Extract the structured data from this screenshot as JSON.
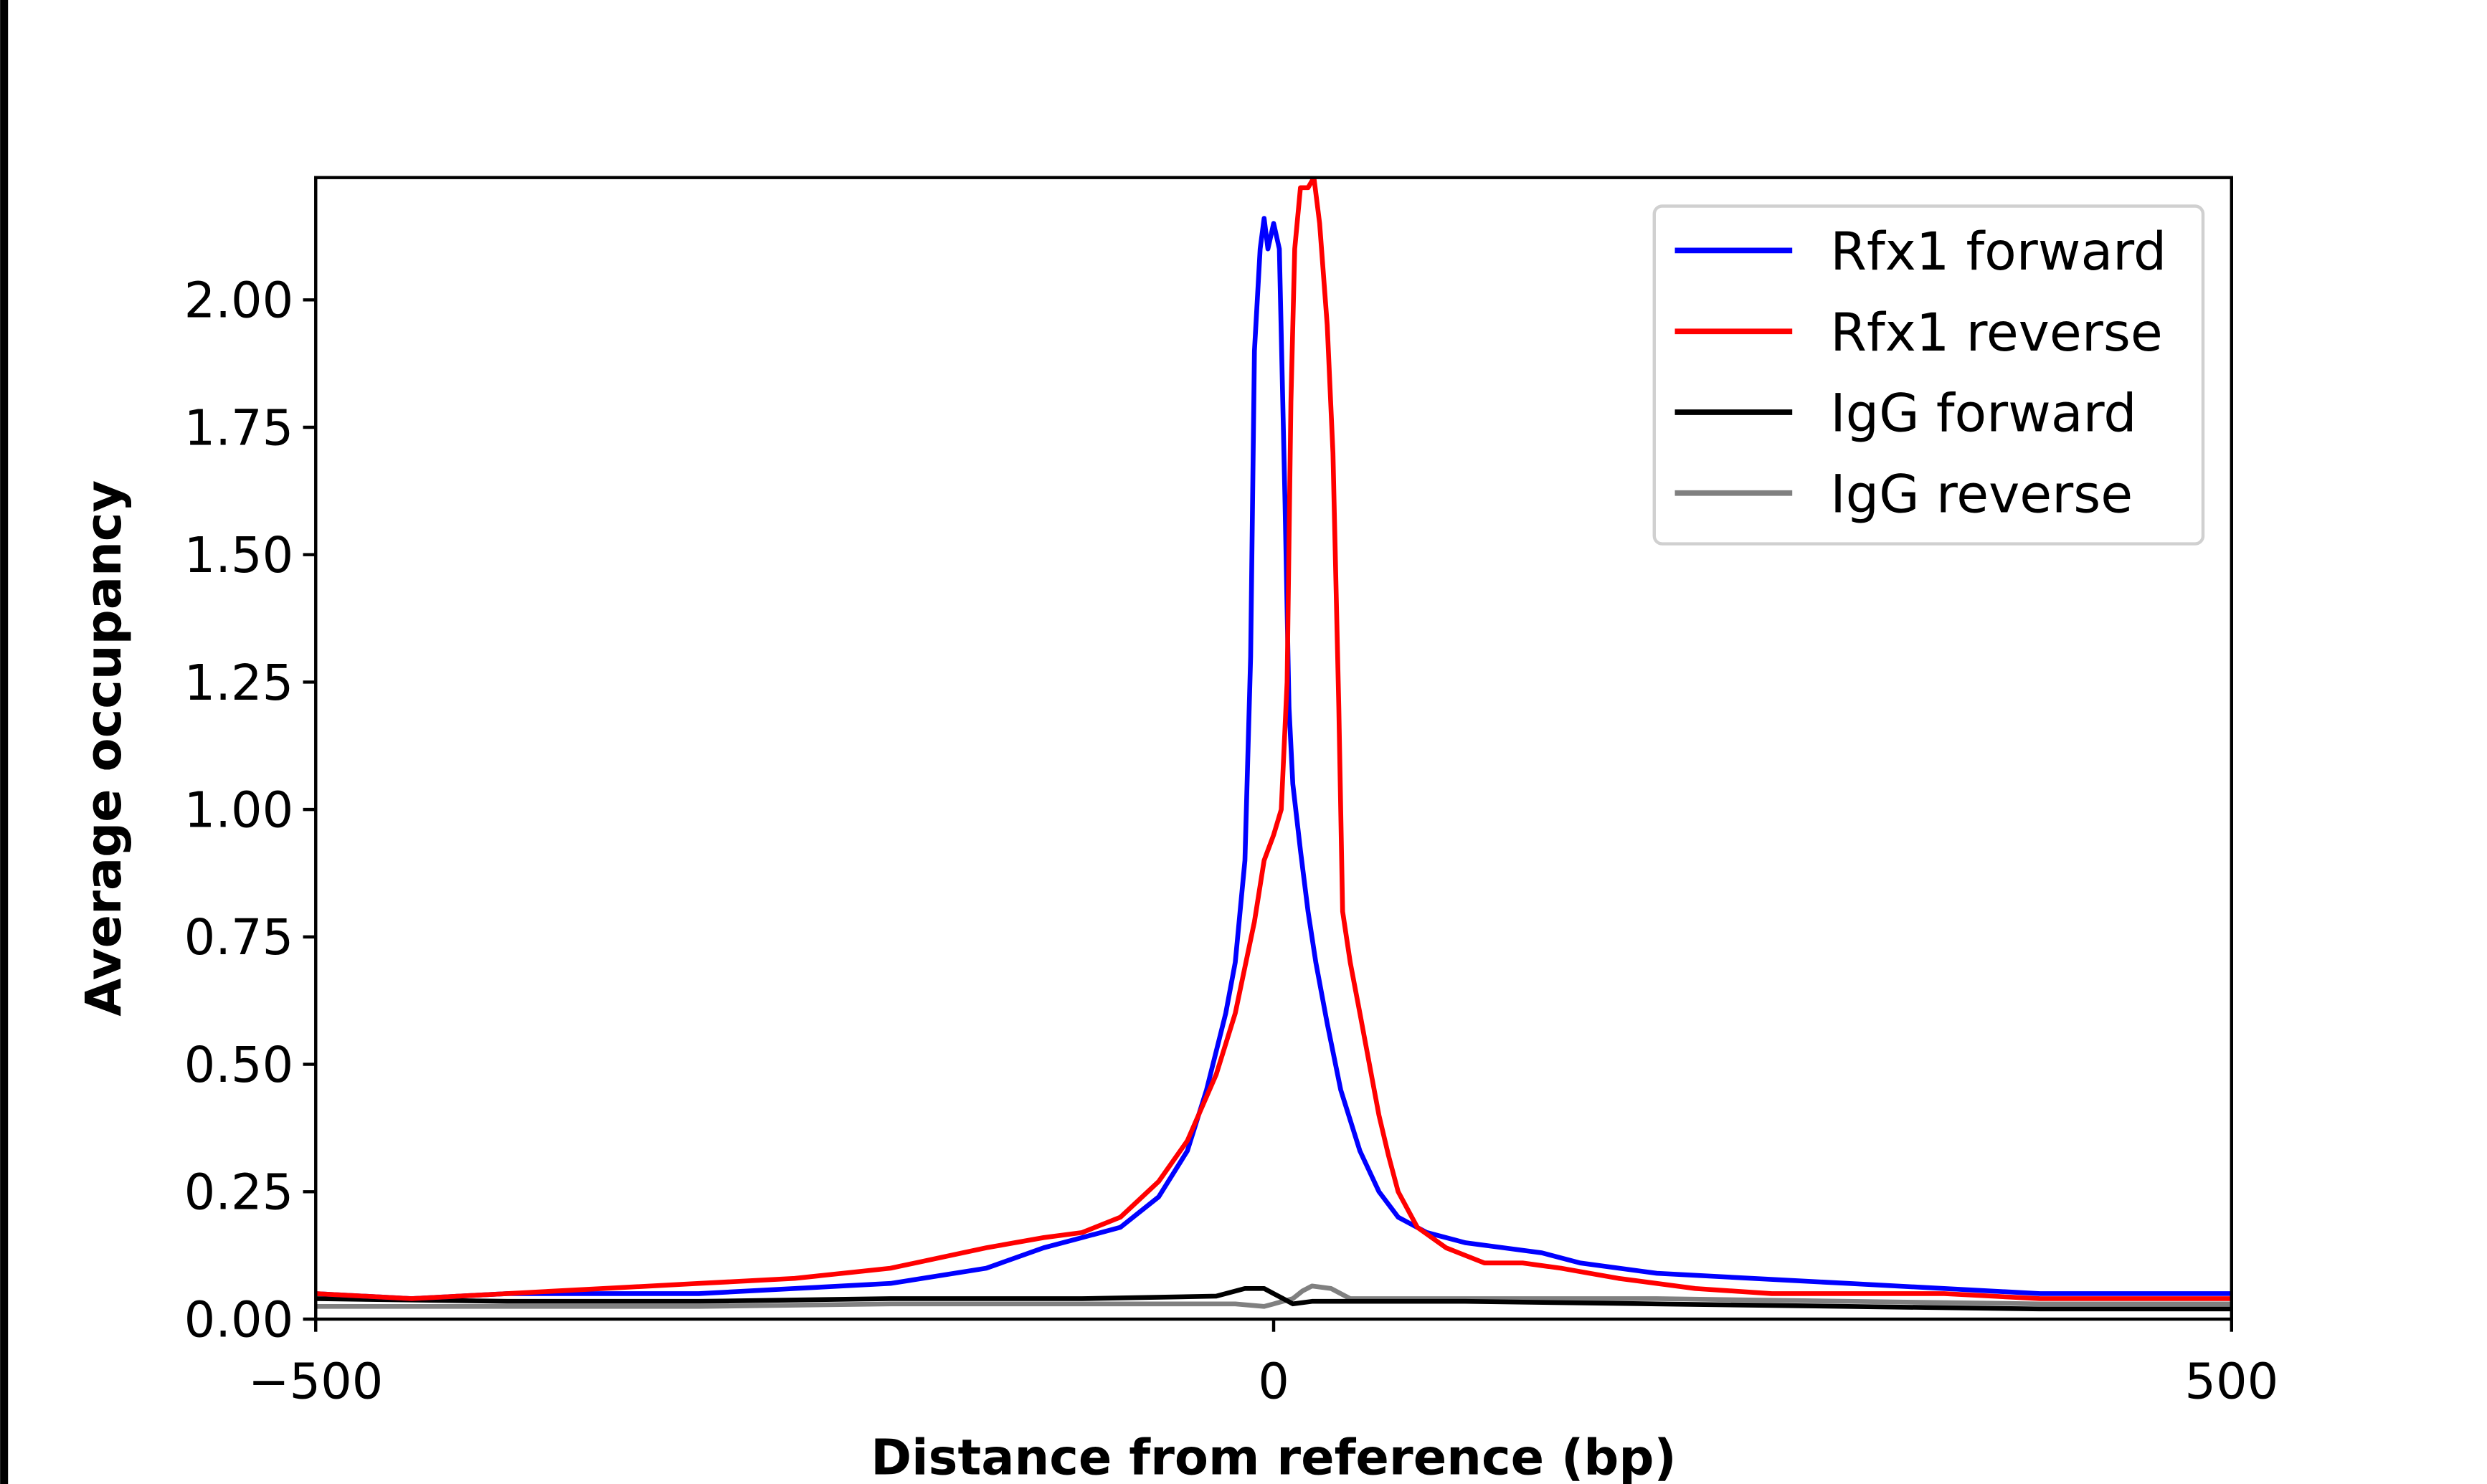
{
  "chart_data": {
    "type": "line",
    "xlabel": "Distance from reference (bp)",
    "ylabel": "Average occupancy",
    "xlim": [
      -500,
      500
    ],
    "ylim": [
      0,
      2.24
    ],
    "xticks": [
      "−500",
      "0",
      "500"
    ],
    "xtick_values": [
      -500,
      0,
      500
    ],
    "yticks": [
      "0.00",
      "0.25",
      "0.50",
      "0.75",
      "1.00",
      "1.25",
      "1.50",
      "1.75",
      "2.00"
    ],
    "ytick_values": [
      0,
      0.25,
      0.5,
      0.75,
      1.0,
      1.25,
      1.5,
      1.75,
      2.0
    ],
    "grid": false,
    "legend_position": "top-right",
    "series": [
      {
        "name": "Rfx1 forward",
        "color": "#0000ff",
        "x": [
          -500,
          -450,
          -400,
          -350,
          -300,
          -250,
          -200,
          -150,
          -120,
          -100,
          -80,
          -60,
          -45,
          -35,
          -25,
          -20,
          -15,
          -12,
          -10,
          -7,
          -5,
          -3,
          0,
          3,
          6,
          8,
          10,
          14,
          18,
          22,
          28,
          35,
          45,
          55,
          65,
          80,
          100,
          120,
          140,
          160,
          200,
          250,
          300,
          350,
          400,
          450,
          500
        ],
        "y": [
          0.05,
          0.04,
          0.05,
          0.05,
          0.05,
          0.06,
          0.07,
          0.1,
          0.14,
          0.16,
          0.18,
          0.24,
          0.33,
          0.45,
          0.6,
          0.7,
          0.9,
          1.3,
          1.9,
          2.1,
          2.16,
          2.1,
          2.15,
          2.1,
          1.6,
          1.2,
          1.05,
          0.92,
          0.8,
          0.7,
          0.58,
          0.45,
          0.33,
          0.25,
          0.2,
          0.17,
          0.15,
          0.14,
          0.13,
          0.11,
          0.09,
          0.08,
          0.07,
          0.06,
          0.05,
          0.05,
          0.05
        ]
      },
      {
        "name": "Rfx1 reverse",
        "color": "#ff0000",
        "x": [
          -500,
          -450,
          -400,
          -350,
          -300,
          -250,
          -200,
          -150,
          -120,
          -100,
          -80,
          -60,
          -45,
          -30,
          -20,
          -10,
          -5,
          0,
          4,
          7,
          9,
          11,
          14,
          18,
          21,
          24,
          28,
          31,
          34,
          36,
          40,
          45,
          50,
          55,
          60,
          65,
          75,
          90,
          110,
          130,
          150,
          180,
          220,
          260,
          300,
          350,
          400,
          450,
          500
        ],
        "y": [
          0.05,
          0.04,
          0.05,
          0.06,
          0.07,
          0.08,
          0.1,
          0.14,
          0.16,
          0.17,
          0.2,
          0.27,
          0.35,
          0.48,
          0.6,
          0.78,
          0.9,
          0.95,
          1.0,
          1.25,
          1.8,
          2.1,
          2.22,
          2.22,
          2.24,
          2.15,
          1.95,
          1.7,
          1.2,
          0.8,
          0.7,
          0.6,
          0.5,
          0.4,
          0.32,
          0.25,
          0.18,
          0.14,
          0.11,
          0.11,
          0.1,
          0.08,
          0.06,
          0.05,
          0.05,
          0.05,
          0.04,
          0.04,
          0.04
        ]
      },
      {
        "name": "IgG forward",
        "color": "#000000",
        "x": [
          -500,
          -400,
          -300,
          -200,
          -100,
          -30,
          -15,
          -5,
          0,
          5,
          10,
          20,
          50,
          100,
          200,
          300,
          400,
          500
        ],
        "y": [
          0.04,
          0.035,
          0.035,
          0.04,
          0.04,
          0.045,
          0.06,
          0.06,
          0.05,
          0.04,
          0.03,
          0.035,
          0.035,
          0.035,
          0.03,
          0.025,
          0.02,
          0.02
        ]
      },
      {
        "name": "IgG reverse",
        "color": "#808080",
        "x": [
          -500,
          -400,
          -300,
          -200,
          -100,
          -20,
          -5,
          0,
          10,
          15,
          20,
          30,
          40,
          100,
          200,
          300,
          400,
          500
        ],
        "y": [
          0.025,
          0.025,
          0.025,
          0.03,
          0.03,
          0.03,
          0.025,
          0.03,
          0.04,
          0.055,
          0.065,
          0.06,
          0.04,
          0.04,
          0.04,
          0.035,
          0.03,
          0.03
        ]
      }
    ]
  }
}
